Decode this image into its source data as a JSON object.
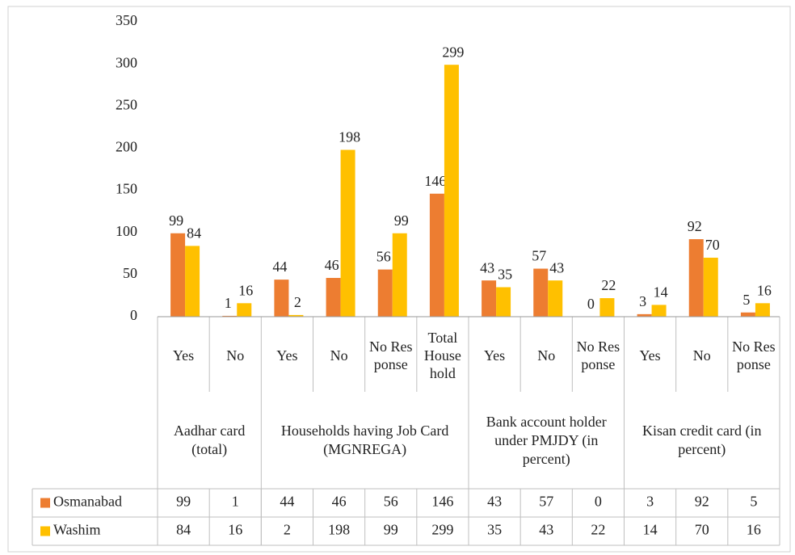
{
  "chart_data": {
    "type": "bar",
    "groups": [
      {
        "name": "Aadhar card (total)",
        "categories": [
          "Yes",
          "No"
        ]
      },
      {
        "name": "Households having Job Card (MGNREGA)",
        "categories": [
          "Yes",
          "No",
          "No Response",
          "Total Household"
        ]
      },
      {
        "name": "Bank account holder under PMJDY (in percent)",
        "categories": [
          "Yes",
          "No",
          "No Response"
        ]
      },
      {
        "name": "Kisan credit card (in percent)",
        "categories": [
          "Yes",
          "No",
          "No Response"
        ]
      }
    ],
    "series": [
      {
        "name": "Osmanabad",
        "color": "#ed7d31",
        "values": [
          99,
          1,
          44,
          46,
          56,
          146,
          43,
          57,
          0,
          3,
          92,
          5
        ]
      },
      {
        "name": "Washim",
        "color": "#ffc000",
        "values": [
          84,
          16,
          2,
          198,
          99,
          299,
          35,
          43,
          22,
          14,
          70,
          16
        ]
      }
    ],
    "ylim": [
      0,
      350
    ],
    "yticks": [
      0,
      50,
      100,
      150,
      200,
      250,
      300,
      350
    ],
    "grid": false
  }
}
